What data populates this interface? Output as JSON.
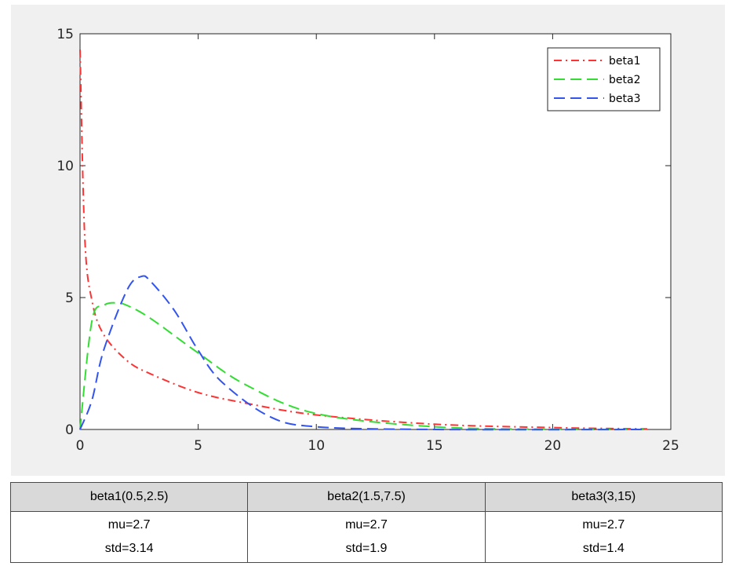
{
  "chart_data": {
    "type": "line",
    "xlim": [
      0,
      25
    ],
    "ylim": [
      0,
      15
    ],
    "x_ticks": [
      0,
      5,
      10,
      15,
      20,
      25
    ],
    "y_ticks": [
      0,
      5,
      10,
      15
    ],
    "grid": false,
    "legend_position": "top-right",
    "series": [
      {
        "name": "beta1",
        "color": "#ff3333",
        "dash": "dash-dot",
        "shape": [
          0.5,
          2.5
        ],
        "x": [
          0,
          0.2,
          0.5,
          1,
          2,
          3,
          5,
          7,
          10,
          15,
          20,
          24
        ],
        "y": [
          14.4,
          7.3,
          4.9,
          3.6,
          2.6,
          2.1,
          1.4,
          1.0,
          0.55,
          0.2,
          0.07,
          0.02
        ]
      },
      {
        "name": "beta2",
        "color": "#33dd33",
        "dash": "dash",
        "shape": [
          1.5,
          7.5
        ],
        "x": [
          0,
          0.5,
          1,
          1.5,
          2,
          3,
          5,
          7,
          10,
          15,
          20,
          24
        ],
        "y": [
          0,
          4.1,
          4.7,
          4.8,
          4.7,
          4.2,
          2.9,
          1.7,
          0.6,
          0.1,
          0.01,
          0
        ]
      },
      {
        "name": "beta3",
        "color": "#3355ee",
        "dash": "dash",
        "shape": [
          3,
          15
        ],
        "x": [
          0,
          0.5,
          1,
          2,
          2.6,
          3,
          4,
          5,
          6,
          8,
          10,
          15,
          24
        ],
        "y": [
          0,
          1.1,
          3.0,
          5.3,
          5.8,
          5.6,
          4.5,
          3.0,
          1.8,
          0.5,
          0.1,
          0,
          0
        ]
      }
    ]
  },
  "table": {
    "headers": [
      "beta1(0.5,2.5)",
      "beta2(1.5,7.5)",
      "beta3(3,15)"
    ],
    "rows": [
      {
        "mu": "mu=2.7",
        "std": "std=3.14"
      },
      {
        "mu": "mu=2.7",
        "std": "std=1.9"
      },
      {
        "mu": "mu=2.7",
        "std": "std=1.4"
      }
    ]
  }
}
